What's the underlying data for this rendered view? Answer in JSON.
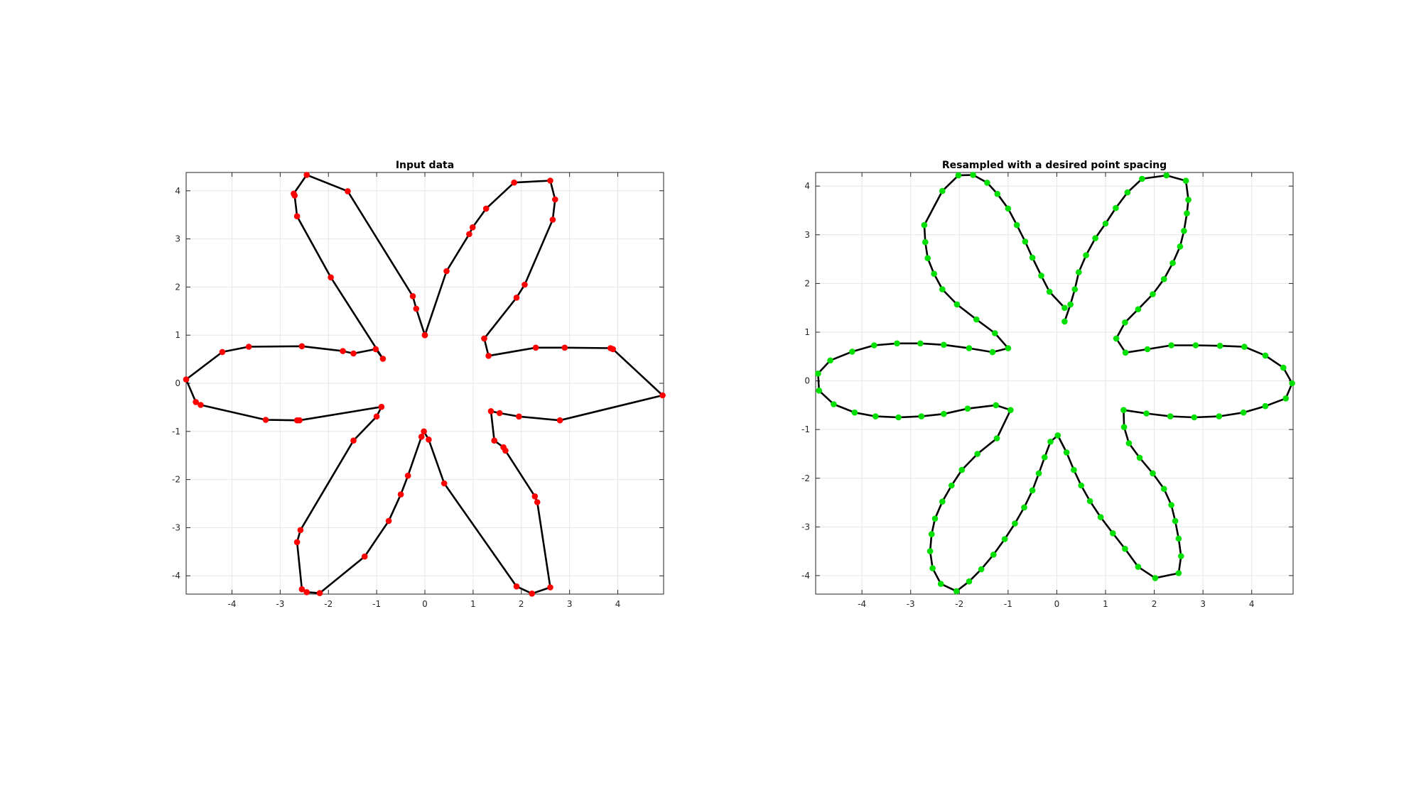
{
  "chart_data": [
    {
      "type": "line",
      "title": "Input data",
      "xlabel": "",
      "ylabel": "",
      "xlim": [
        -4.95,
        4.95
      ],
      "ylim": [
        -4.38,
        4.38
      ],
      "xticks": [
        -4,
        -3,
        -2,
        -1,
        0,
        1,
        2,
        3,
        4
      ],
      "yticks": [
        -4,
        -3,
        -2,
        -1,
        0,
        1,
        2,
        3,
        4
      ],
      "xtick_labels": [
        "-4",
        "-3",
        "-2",
        "-1",
        "0",
        "1",
        "2",
        "3",
        "4"
      ],
      "ytick_labels": [
        "-4",
        "-3",
        "-2",
        "-1",
        "0",
        "1",
        "2",
        "3",
        "4"
      ],
      "grid": true,
      "line_color": "#000000",
      "marker_color": "#ff0000",
      "x": [
        0.0,
        0.45,
        0.92,
        0.99,
        1.27,
        1.85,
        2.6,
        2.7,
        2.65,
        2.07,
        1.9,
        1.23,
        1.32,
        2.3,
        2.9,
        3.85,
        3.9,
        4.93,
        2.8,
        1.95,
        1.55,
        1.37,
        1.44,
        1.63,
        1.67,
        2.28,
        2.33,
        2.6,
        2.22,
        1.9,
        0.4,
        0.08,
        -0.02,
        -0.07,
        -0.35,
        -0.5,
        -0.75,
        -1.25,
        -2.18,
        -2.45,
        -2.55,
        -2.65,
        -2.58,
        -1.48,
        -1.0,
        -0.9,
        -2.6,
        -2.65,
        -3.3,
        -4.65,
        -4.75,
        -4.95,
        -4.2,
        -3.65,
        -2.55,
        -1.7,
        -1.48,
        -1.02,
        -0.87,
        -1.95,
        -2.65,
        -2.7,
        -2.72,
        -2.45,
        -1.6,
        -0.25,
        -0.18,
        0.0
      ],
      "y": [
        1.0,
        2.33,
        3.1,
        3.24,
        3.63,
        4.17,
        4.21,
        3.82,
        3.4,
        2.05,
        1.78,
        0.93,
        0.57,
        0.74,
        0.74,
        0.73,
        0.71,
        -0.25,
        -0.77,
        -0.69,
        -0.62,
        -0.58,
        -1.19,
        -1.33,
        -1.4,
        -2.35,
        -2.47,
        -4.24,
        -4.37,
        -4.22,
        -2.08,
        -1.17,
        -1.0,
        -1.11,
        -1.92,
        -2.31,
        -2.86,
        -3.6,
        -4.36,
        -4.34,
        -4.28,
        -3.3,
        -3.05,
        -1.19,
        -0.69,
        -0.49,
        -0.77,
        -0.77,
        -0.76,
        -0.45,
        -0.39,
        0.08,
        0.65,
        0.76,
        0.77,
        0.67,
        0.62,
        0.71,
        0.51,
        2.2,
        3.47,
        3.9,
        3.94,
        4.33,
        3.99,
        1.81,
        1.55,
        1.0
      ]
    },
    {
      "type": "line",
      "title": "Resampled with a desired point spacing",
      "xlabel": "",
      "ylabel": "",
      "xlim": [
        -4.95,
        4.85
      ],
      "ylim": [
        -4.38,
        4.28
      ],
      "xticks": [
        -4,
        -3,
        -2,
        -1,
        0,
        1,
        2,
        3,
        4
      ],
      "yticks": [
        -4,
        -3,
        -2,
        -1,
        0,
        1,
        2,
        3,
        4
      ],
      "xtick_labels": [
        "-4",
        "-3",
        "-2",
        "-1",
        "0",
        "1",
        "2",
        "3",
        "4"
      ],
      "ytick_labels": [
        "-4",
        "-3",
        "-2",
        "-1",
        "0",
        "1",
        "2",
        "3",
        "4"
      ],
      "grid": true,
      "line_color": "#000000",
      "marker_color": "#00e000",
      "x": [
        0.16,
        0.28,
        0.37,
        0.45,
        0.6,
        0.79,
        1.0,
        1.21,
        1.45,
        1.75,
        2.25,
        2.65,
        2.7,
        2.67,
        2.61,
        2.53,
        2.38,
        2.2,
        1.97,
        1.67,
        1.4,
        1.22,
        1.41,
        1.86,
        2.35,
        2.85,
        3.35,
        3.85,
        4.28,
        4.65,
        4.83,
        4.7,
        4.28,
        3.83,
        3.33,
        2.82,
        2.33,
        1.84,
        1.37,
        1.38,
        1.48,
        1.7,
        1.97,
        2.2,
        2.35,
        2.43,
        2.5,
        2.55,
        2.5,
        2.02,
        1.67,
        1.4,
        1.15,
        0.9,
        0.68,
        0.5,
        0.35,
        0.2,
        0.02,
        -0.13,
        -0.25,
        -0.37,
        -0.5,
        -0.67,
        -0.86,
        -1.07,
        -1.3,
        -1.55,
        -1.8,
        -2.06,
        -2.38,
        -2.55,
        -2.6,
        -2.57,
        -2.5,
        -2.35,
        -2.16,
        -1.95,
        -1.63,
        -1.23,
        -0.95,
        -1.25,
        -1.83,
        -2.32,
        -2.78,
        -3.25,
        -3.72,
        -4.15,
        -4.58,
        -4.88,
        -4.9,
        -4.65,
        -4.2,
        -3.75,
        -3.28,
        -2.8,
        -2.32,
        -1.8,
        -1.32,
        -1.0,
        -1.27,
        -1.65,
        -2.05,
        -2.35,
        -2.52,
        -2.65,
        -2.7,
        -2.72,
        -2.35,
        -2.02,
        -1.72,
        -1.43,
        -1.22,
        -1.0,
        -0.82,
        -0.65,
        -0.5,
        -0.32,
        -0.15,
        0.16
      ],
      "y": [
        1.22,
        1.57,
        1.88,
        2.23,
        2.58,
        2.93,
        3.23,
        3.55,
        3.87,
        4.15,
        4.22,
        4.11,
        3.72,
        3.44,
        3.08,
        2.76,
        2.42,
        2.09,
        1.78,
        1.47,
        1.2,
        0.87,
        0.58,
        0.65,
        0.73,
        0.73,
        0.72,
        0.7,
        0.52,
        0.27,
        -0.05,
        -0.36,
        -0.52,
        -0.65,
        -0.73,
        -0.75,
        -0.73,
        -0.67,
        -0.6,
        -0.95,
        -1.28,
        -1.58,
        -1.9,
        -2.22,
        -2.55,
        -2.88,
        -3.24,
        -3.6,
        -3.95,
        -4.05,
        -3.82,
        -3.45,
        -3.13,
        -2.8,
        -2.47,
        -2.15,
        -1.83,
        -1.47,
        -1.12,
        -1.25,
        -1.57,
        -1.9,
        -2.25,
        -2.6,
        -2.93,
        -3.25,
        -3.57,
        -3.87,
        -4.12,
        -4.32,
        -4.17,
        -3.85,
        -3.5,
        -3.15,
        -2.83,
        -2.48,
        -2.15,
        -1.83,
        -1.5,
        -1.18,
        -0.6,
        -0.5,
        -0.57,
        -0.68,
        -0.73,
        -0.75,
        -0.73,
        -0.65,
        -0.48,
        -0.2,
        0.15,
        0.42,
        0.6,
        0.73,
        0.77,
        0.77,
        0.74,
        0.67,
        0.59,
        0.67,
        0.98,
        1.26,
        1.57,
        1.88,
        2.2,
        2.52,
        2.85,
        3.2,
        3.9,
        4.22,
        4.23,
        4.07,
        3.84,
        3.54,
        3.2,
        2.86,
        2.53,
        2.16,
        1.83,
        1.5
      ]
    }
  ]
}
